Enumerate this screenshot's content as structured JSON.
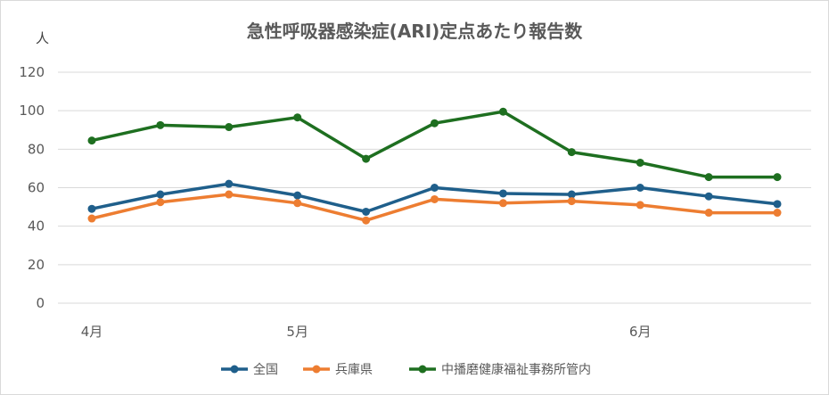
{
  "chart_data": {
    "type": "line",
    "title": "急性呼吸器感染症(ARI)定点あたり報告数",
    "ylabel": "人",
    "xlabel": "",
    "ylim": [
      0,
      120
    ],
    "yticks": [
      "0",
      "20",
      "40",
      "60",
      "80",
      "100",
      "120"
    ],
    "x_tick_labels": [
      {
        "index": 0,
        "label": "4月"
      },
      {
        "index": 3,
        "label": "5月"
      },
      {
        "index": 8,
        "label": "6月"
      }
    ],
    "grid": true,
    "legend_position": "bottom",
    "series": [
      {
        "name": "全国",
        "color": "#1f5f8b",
        "values": [
          49,
          56.5,
          62,
          56,
          47.5,
          60,
          57,
          56.5,
          60,
          55.5,
          51.5
        ]
      },
      {
        "name": "兵庫県",
        "color": "#ed7d31",
        "values": [
          44,
          52.5,
          56.5,
          52,
          43,
          54,
          52,
          53,
          51,
          47,
          47
        ]
      },
      {
        "name": "中播磨健康福祉事務所管内",
        "color": "#1e6f20",
        "values": [
          84.5,
          92.5,
          91.5,
          96.5,
          75,
          93.5,
          99.5,
          78.5,
          73,
          65.5,
          65.5
        ]
      }
    ]
  }
}
